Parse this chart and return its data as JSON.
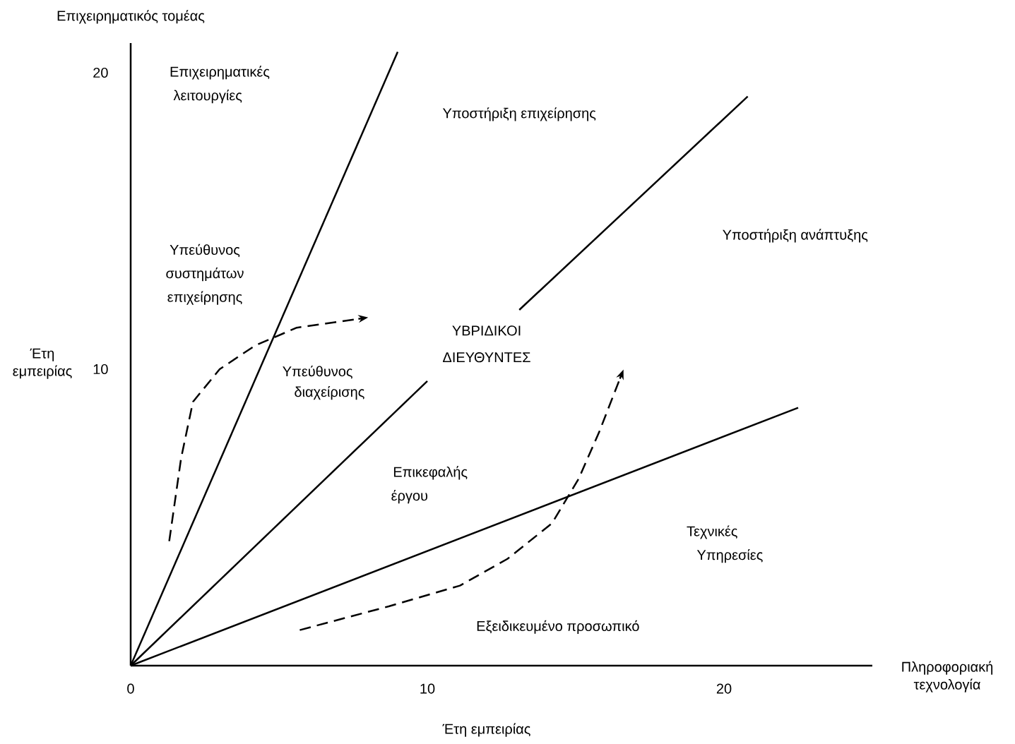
{
  "chart_data": {
    "type": "line",
    "xlabel": "Έτη εμπειρίας",
    "ylabel": "Έτη εμπειρίας",
    "xlim": [
      0,
      25
    ],
    "ylim": [
      0,
      21
    ],
    "xticks": [
      0,
      10,
      20
    ],
    "yticks": [
      10,
      20
    ],
    "grid": false,
    "marker": "none",
    "line_style": "solid",
    "series": [
      {
        "color": "#000000",
        "x": [
          0,
          9.0
        ],
        "values": [
          0,
          20.7
        ]
      },
      {
        "color": "#000000",
        "x": [
          0,
          10.0,
          11.5,
          13.1,
          20.8
        ],
        "values": [
          0,
          9.6,
          null,
          12.0,
          19.2
        ]
      },
      {
        "color": "#000000",
        "x": [
          0,
          22.5
        ],
        "values": [
          0,
          8.7
        ]
      },
      {
        "color": "#000000",
        "line_style": "dashed",
        "x": [
          1.3,
          1.7,
          2.1,
          3.0,
          4.2,
          5.6,
          7.7
        ],
        "values": [
          4.2,
          7.0,
          8.9,
          10.0,
          10.8,
          11.4,
          11.7
        ]
      },
      {
        "color": "#000000",
        "line_style": "dashed",
        "x": [
          5.7,
          8.7,
          11.1,
          12.7,
          14.2,
          15.1,
          15.8,
          16.5
        ],
        "values": [
          1.2,
          2.0,
          2.7,
          3.6,
          4.8,
          6.3,
          7.9,
          9.7
        ]
      }
    ],
    "annotations": [
      "Επιχειρηματικός τομέας",
      "Πληροφοριακή τεχνολογία",
      "Επιχειρηματικές",
      "λειτουργίες",
      "Υποστήριξη επιχείρησης",
      "Υποστήριξη ανάπτυξης",
      "Υπεύθυνος",
      "συστημάτων",
      "επιχείρησης",
      "ΥΒΡΙΔΙΚΟΙ",
      "ΔΙΕΥΘΥΝΤΕΣ",
      "Υπεύθυνος",
      "διαχείρισης",
      "Επικεφαλής",
      "έργου",
      "Τεχνικές",
      "Υπηρεσίες",
      "Εξειδικευμένο προσωπικό"
    ]
  }
}
